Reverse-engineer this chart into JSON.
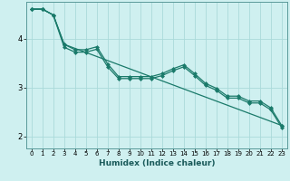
{
  "title": "",
  "xlabel": "Humidex (Indice chaleur)",
  "bg_color": "#cff0f0",
  "line_color": "#1a7a6a",
  "grid_color": "#aadada",
  "spine_color": "#5a9a9a",
  "xlim": [
    -0.5,
    23.5
  ],
  "ylim": [
    1.75,
    4.75
  ],
  "xticks": [
    0,
    1,
    2,
    3,
    4,
    5,
    6,
    7,
    8,
    9,
    10,
    11,
    12,
    13,
    14,
    15,
    16,
    17,
    18,
    19,
    20,
    21,
    22,
    23
  ],
  "yticks": [
    2,
    3,
    4
  ],
  "line1_x": [
    0,
    1,
    2,
    3,
    4,
    5,
    6,
    7,
    8,
    9,
    10,
    11,
    12,
    13,
    14,
    15,
    16,
    17,
    18,
    19,
    20,
    21,
    22,
    23
  ],
  "line1_y": [
    4.6,
    4.6,
    4.48,
    3.88,
    3.77,
    3.77,
    3.83,
    3.48,
    3.22,
    3.22,
    3.22,
    3.22,
    3.28,
    3.38,
    3.46,
    3.28,
    3.08,
    2.98,
    2.82,
    2.82,
    2.72,
    2.72,
    2.58,
    2.22
  ],
  "line2_x": [
    0,
    1,
    2,
    3,
    4,
    5,
    6,
    7,
    8,
    9,
    10,
    11,
    12,
    13,
    14,
    15,
    16,
    17,
    18,
    19,
    20,
    21,
    22,
    23
  ],
  "line2_y": [
    4.6,
    4.6,
    4.48,
    3.82,
    3.72,
    3.72,
    3.78,
    3.42,
    3.18,
    3.18,
    3.18,
    3.18,
    3.24,
    3.34,
    3.42,
    3.24,
    3.04,
    2.94,
    2.78,
    2.78,
    2.68,
    2.68,
    2.54,
    2.18
  ],
  "line3_x": [
    0,
    1,
    2,
    3,
    23
  ],
  "line3_y": [
    4.6,
    4.6,
    4.48,
    3.88,
    2.22
  ],
  "markersize": 2.5,
  "linewidth": 0.9,
  "xlabel_fontsize": 6.5,
  "xlabel_fontweight": "bold",
  "xlabel_color": "#1a5a5a",
  "tick_fontsize": 5.0,
  "ytick_fontsize": 6.0
}
